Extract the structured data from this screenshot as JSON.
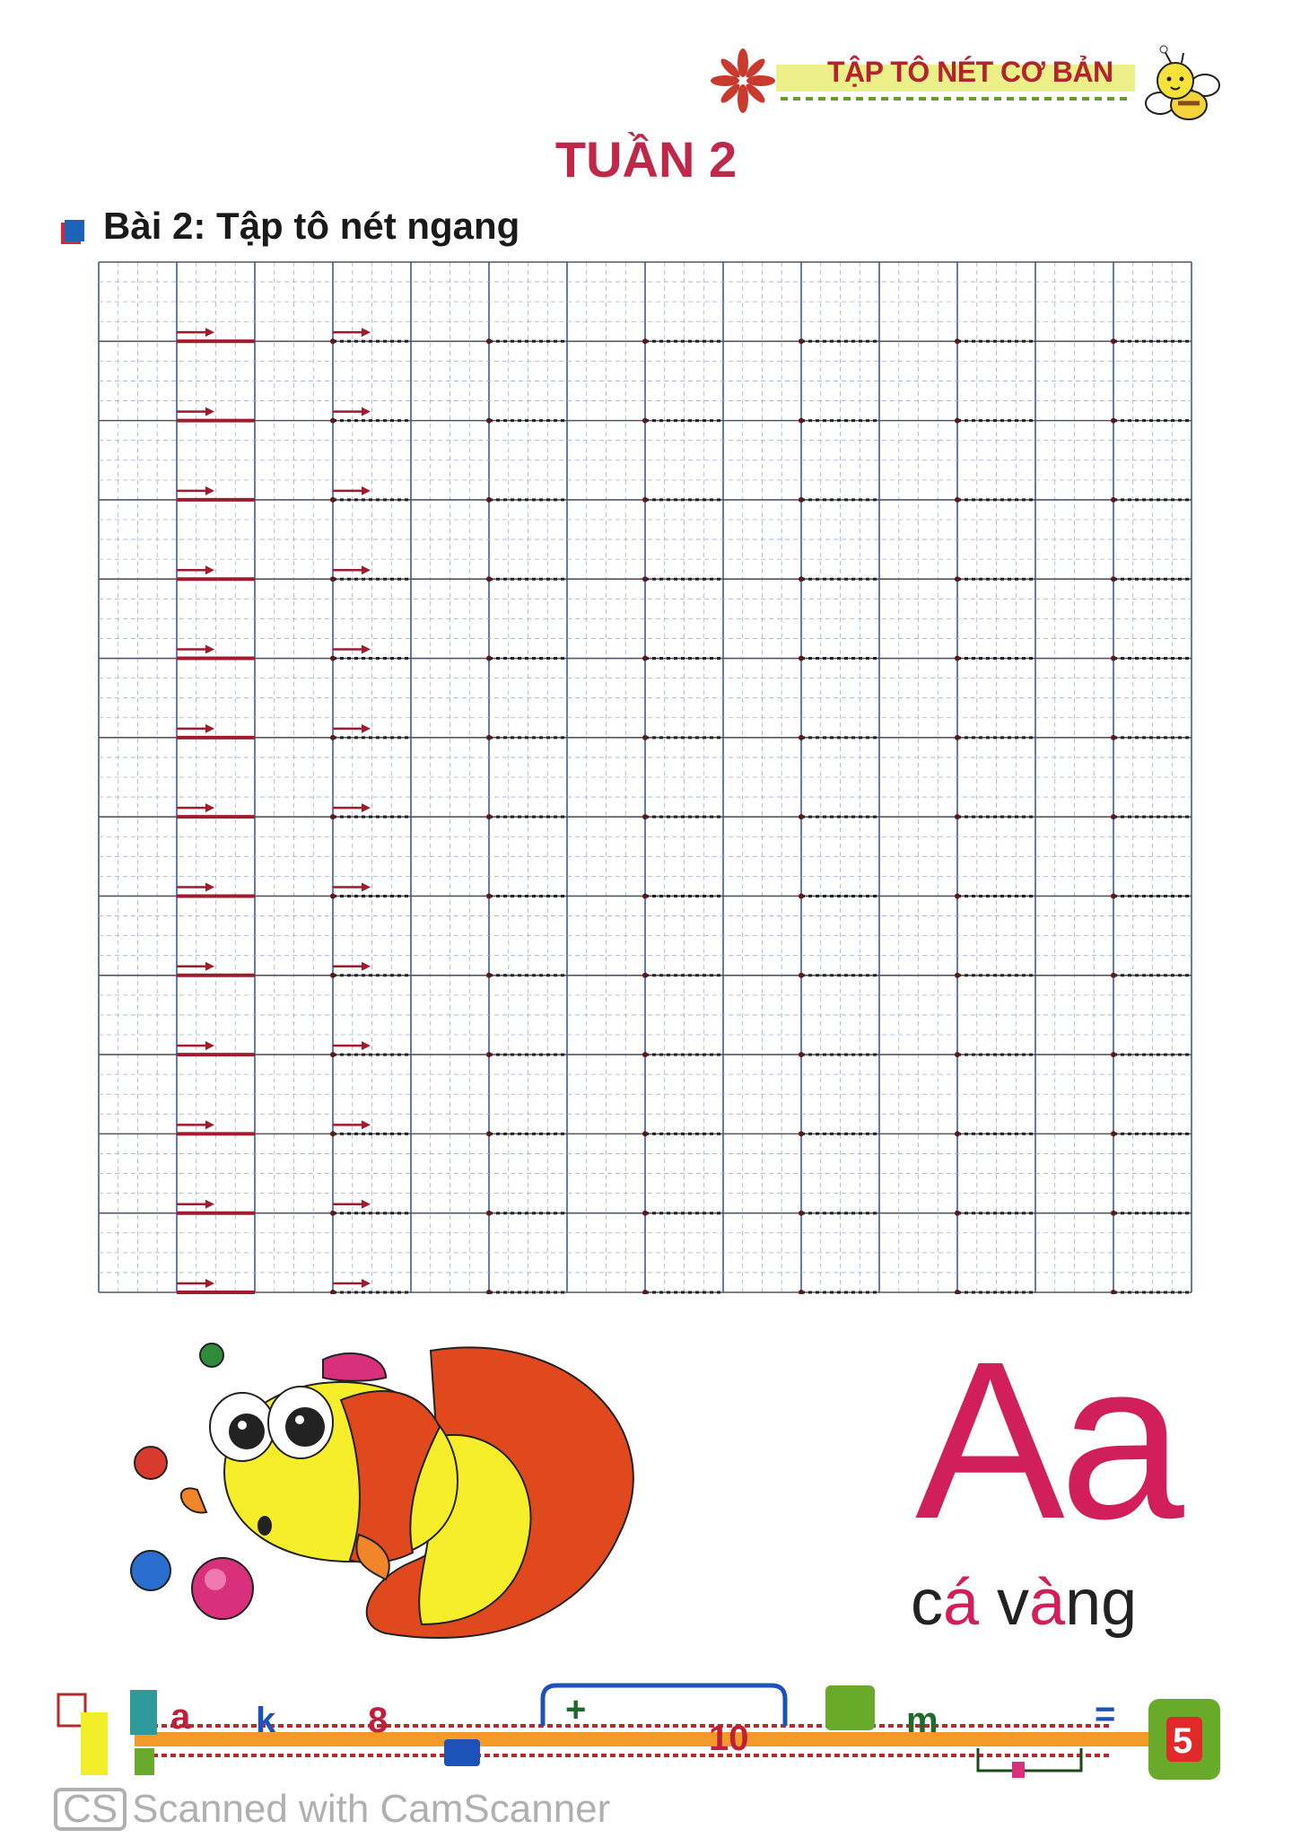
{
  "header": {
    "banner": "TẬP TÔ NÉT CƠ BẢN",
    "banner_icons": [
      "flower-icon",
      "bee-icon"
    ]
  },
  "page": {
    "week_title": "TUẦN 2",
    "lesson_title": "Bài 2: Tập tô nét ngang"
  },
  "grid": {
    "columns": 14,
    "rows": 13,
    "subdivisions": 4,
    "line_color": "#3b5c9e",
    "trace_color": "#a01c2c"
  },
  "illustration": {
    "letters": "Aa",
    "word_highlight": "á",
    "word_parts": [
      "c",
      "á",
      " v",
      "à",
      "ng"
    ]
  },
  "footer": {
    "strip_symbols": [
      "a",
      "k",
      "8",
      "+",
      "10",
      "m",
      "=",
      "5"
    ],
    "watermark": "Scanned with CamScanner",
    "watermark_logo": "CS"
  },
  "colors": {
    "title": "#c0284a",
    "accent_pink": "#d11f5c",
    "orange": "#f39a2b"
  }
}
